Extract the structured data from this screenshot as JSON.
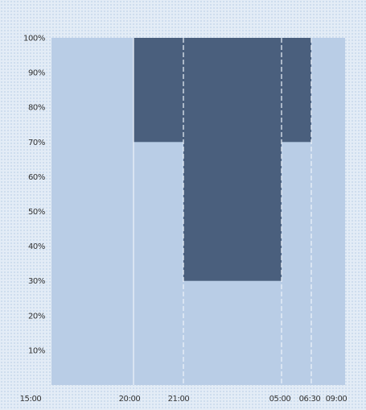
{
  "chart_data": {
    "type": "area",
    "title": "",
    "xlabel": "",
    "ylabel": "",
    "x_tick_labels": [
      "15:00",
      "20:00",
      "21:00",
      "05:00",
      "06:30",
      "09:00"
    ],
    "y_tick_labels": [
      "10%",
      "20%",
      "30%",
      "40%",
      "50%",
      "60%",
      "70%",
      "80%",
      "90%",
      "100%"
    ],
    "x_hours": [
      15,
      20,
      21,
      29,
      30.5,
      33
    ],
    "ylim": [
      0,
      100
    ],
    "background_band": {
      "from_hour": 15,
      "to_hour": 33,
      "value": 100,
      "color": "#b9cde6"
    },
    "dark_fill_color": "#4a5f7d",
    "segments": [
      {
        "from_hour": 20,
        "to_hour": 21,
        "from_value": 70,
        "to_value": 100
      },
      {
        "from_hour": 21,
        "to_hour": 29,
        "from_value": 30,
        "to_value": 100
      },
      {
        "from_hour": 29,
        "to_hour": 30.5,
        "from_value": 70,
        "to_value": 100
      }
    ],
    "grid": {
      "vertical_at_hours": [
        20,
        21,
        29,
        30.5
      ],
      "color": "#eef4fb"
    }
  }
}
